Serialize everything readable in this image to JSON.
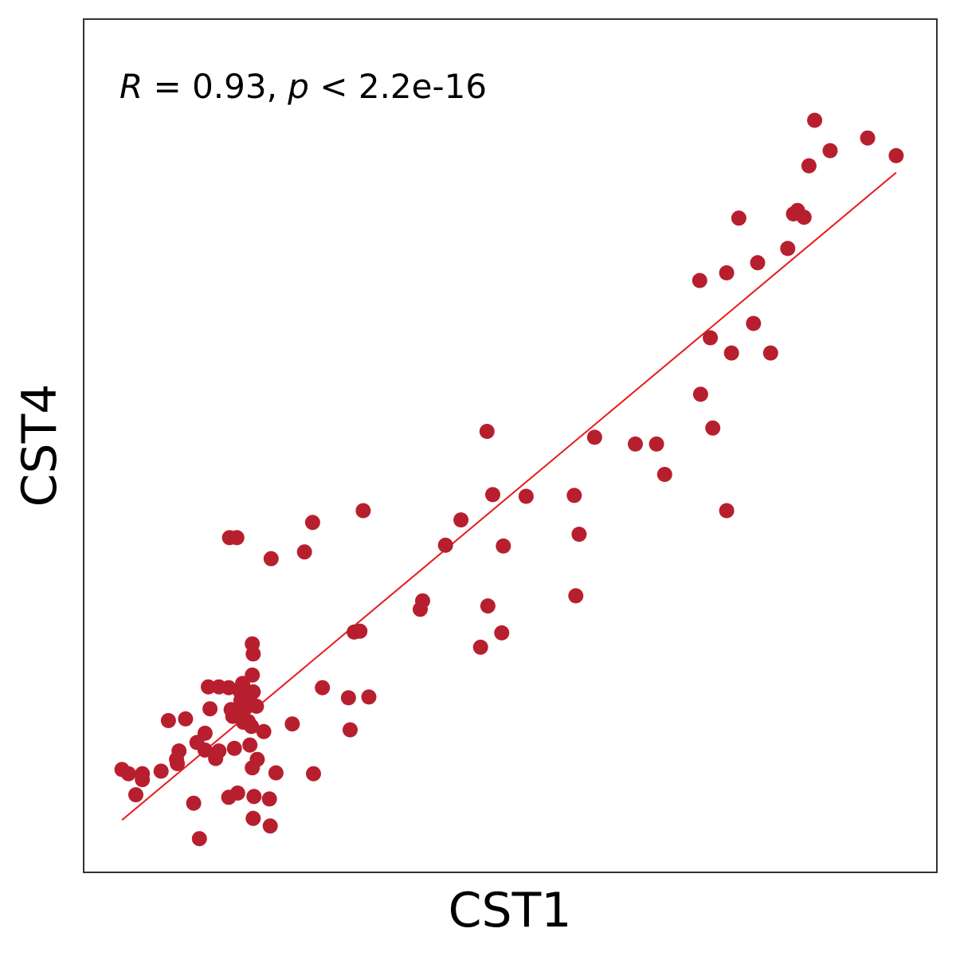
{
  "chart_data": {
    "type": "scatter",
    "xlabel": "CST1",
    "ylabel": "CST4",
    "annotation": {
      "r_symbol": "R",
      "r_text": " = 0.93, ",
      "p_symbol": "p",
      "p_text": " < 2.2e-16"
    },
    "xlim": [
      -4.7,
      100
    ],
    "ylim": [
      -6.2,
      95
    ],
    "grid": false,
    "colors": {
      "points": "#b81f2e",
      "fit_line": "#e8191a",
      "frame": "#333333"
    },
    "fit_line": {
      "x": [
        0,
        95
      ],
      "y": [
        0,
        76.8
      ]
    },
    "points": [
      [
        0,
        6
      ],
      [
        0.8,
        5.5
      ],
      [
        1.7,
        3
      ],
      [
        2.5,
        5.5
      ],
      [
        2.5,
        4.8
      ],
      [
        4.8,
        5.8
      ],
      [
        5.7,
        11.8
      ],
      [
        7,
        8.2
      ],
      [
        6.8,
        6.7
      ],
      [
        6.7,
        7.2
      ],
      [
        7.8,
        12
      ],
      [
        8.8,
        2
      ],
      [
        9.5,
        -2.2
      ],
      [
        9.2,
        9.2
      ],
      [
        10.2,
        10.3
      ],
      [
        10.2,
        8.3
      ],
      [
        10.6,
        15.8
      ],
      [
        10.8,
        13.2
      ],
      [
        11.5,
        7.3
      ],
      [
        11.9,
        8.2
      ],
      [
        11.9,
        15.8
      ],
      [
        13.1,
        15.7
      ],
      [
        14.4,
        15.4
      ],
      [
        13.1,
        2.7
      ],
      [
        13.4,
        13.1
      ],
      [
        13.6,
        12.3
      ],
      [
        13.8,
        8.5
      ],
      [
        13.2,
        33.5
      ],
      [
        14.6,
        14.2
      ],
      [
        14.5,
        12.4
      ],
      [
        14.2,
        3.2
      ],
      [
        14.2,
        12.5
      ],
      [
        14.8,
        16.2
      ],
      [
        14.9,
        13.2
      ],
      [
        15.3,
        15.3
      ],
      [
        15.7,
        8.9
      ],
      [
        15.9,
        11.1
      ],
      [
        15.5,
        14.6
      ],
      [
        14.9,
        11.6
      ],
      [
        14.1,
        33.5
      ],
      [
        15.5,
        11.7
      ],
      [
        16,
        17.2
      ],
      [
        16.1,
        15.2
      ],
      [
        16.1,
        19.7
      ],
      [
        16,
        6.2
      ],
      [
        16,
        20.9
      ],
      [
        16.2,
        2.8
      ],
      [
        16.1,
        0.2
      ],
      [
        16.5,
        13.5
      ],
      [
        16.6,
        7.2
      ],
      [
        17.4,
        10.5
      ],
      [
        18.1,
        2.5
      ],
      [
        18.2,
        -0.7
      ],
      [
        18.3,
        31
      ],
      [
        18.9,
        5.6
      ],
      [
        20.9,
        11.4
      ],
      [
        22.4,
        31.8
      ],
      [
        23.4,
        35.3
      ],
      [
        23.5,
        5.5
      ],
      [
        24.6,
        15.7
      ],
      [
        27.8,
        14.5
      ],
      [
        28,
        10.7
      ],
      [
        28.5,
        22.3
      ],
      [
        29.2,
        22.4
      ],
      [
        29.6,
        36.7
      ],
      [
        30.3,
        14.6
      ],
      [
        36.6,
        25
      ],
      [
        36.9,
        26
      ],
      [
        39.7,
        32.6
      ],
      [
        41.6,
        35.6
      ],
      [
        44,
        20.5
      ],
      [
        44.9,
        25.4
      ],
      [
        44.8,
        46.1
      ],
      [
        45.5,
        38.6
      ],
      [
        46.6,
        22.2
      ],
      [
        46.8,
        32.5
      ],
      [
        49.6,
        38.4
      ],
      [
        55.5,
        38.5
      ],
      [
        55.7,
        26.6
      ],
      [
        56.1,
        33.9
      ],
      [
        58,
        45.4
      ],
      [
        63,
        44.6
      ],
      [
        65.6,
        44.6
      ],
      [
        66.6,
        41
      ],
      [
        70.9,
        64
      ],
      [
        71,
        50.5
      ],
      [
        72.2,
        57.2
      ],
      [
        72.5,
        46.5
      ],
      [
        74.2,
        64.9
      ],
      [
        74.2,
        36.7
      ],
      [
        74.8,
        55.4
      ],
      [
        75.7,
        71.4
      ],
      [
        77.5,
        58.9
      ],
      [
        78,
        66.1
      ],
      [
        79.6,
        55.4
      ],
      [
        81.7,
        67.8
      ],
      [
        82.4,
        71.9
      ],
      [
        82.9,
        72.3
      ],
      [
        83.7,
        71.5
      ],
      [
        84.3,
        77.6
      ],
      [
        85,
        83
      ],
      [
        86.9,
        79.4
      ],
      [
        91.5,
        80.9
      ],
      [
        95,
        78.8
      ]
    ]
  }
}
